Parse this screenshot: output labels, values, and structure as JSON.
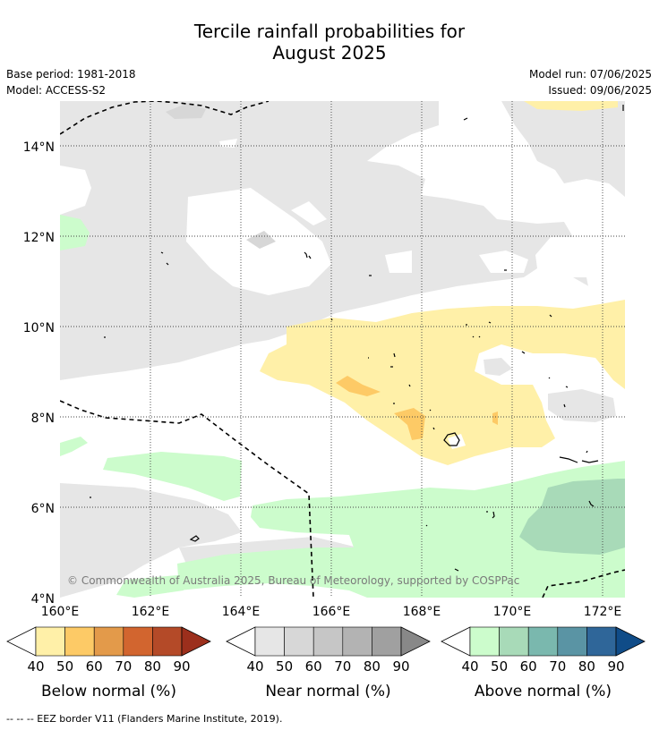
{
  "header": {
    "title_line1": "Tercile rainfall probabilities for",
    "title_line2": "August 2025",
    "base_period": "Base period: 1981-2018",
    "model": "Model: ACCESS-S2",
    "model_run": "Model run: 07/06/2025",
    "issued": "Issued: 09/06/2025"
  },
  "map": {
    "copyright": "© Commonwealth of Australia 2025, Bureau of Meteorology, supported by COSPPac",
    "lat_ticks": [
      "14°N",
      "12°N",
      "10°N",
      "8°N",
      "6°N",
      "4°N"
    ],
    "lon_ticks": [
      "160°E",
      "162°E",
      "164°E",
      "166°E",
      "168°E",
      "170°E",
      "172°E"
    ]
  },
  "chart_data": {
    "type": "heatmap",
    "title": "Tercile rainfall probabilities for August 2025",
    "x_range": [
      160,
      172.5
    ],
    "y_range": [
      4,
      15
    ],
    "grid": true,
    "categories": [
      "Below normal (%)",
      "Near normal (%)",
      "Above normal (%)"
    ],
    "levels": [
      40,
      50,
      60,
      70,
      80,
      90
    ]
  },
  "colorbars": [
    {
      "label": "Below normal (%)",
      "ticks": [
        "40",
        "50",
        "60",
        "70",
        "80",
        "90"
      ],
      "colors": [
        "#fff0a8",
        "#fdca66",
        "#e39a4a",
        "#d2652f",
        "#b44a28",
        "#9c2f1c"
      ]
    },
    {
      "label": "Near normal (%)",
      "ticks": [
        "40",
        "50",
        "60",
        "70",
        "80",
        "90"
      ],
      "colors": [
        "#e6e6e6",
        "#d7d7d7",
        "#c6c6c6",
        "#b3b3b3",
        "#a0a0a0",
        "#888888"
      ]
    },
    {
      "label": "Above normal (%)",
      "ticks": [
        "40",
        "50",
        "60",
        "70",
        "80",
        "90"
      ],
      "colors": [
        "#ccfccc",
        "#a8dab8",
        "#7ab8ae",
        "#5a94a4",
        "#2f6699",
        "#104c88"
      ]
    }
  ],
  "footnote": "--  --  -- EEZ border V11 (Flanders Marine Institute, 2019)."
}
